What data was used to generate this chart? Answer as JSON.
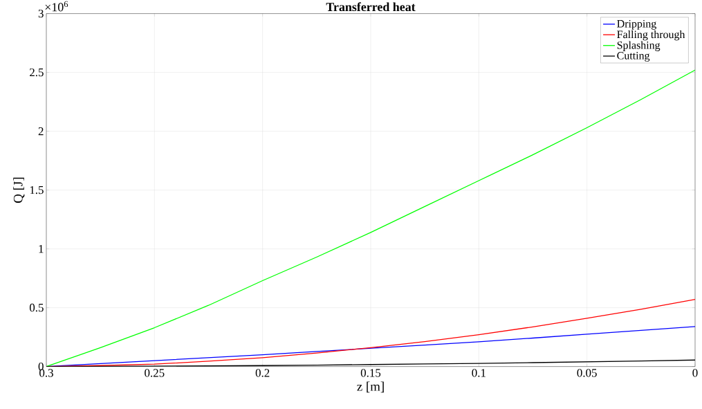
{
  "chart_data": {
    "type": "line",
    "title": "Transferred heat",
    "xlabel": "z [m]",
    "ylabel": "Q [J]",
    "x": [
      0.3,
      0.275,
      0.25,
      0.225,
      0.2,
      0.175,
      0.15,
      0.125,
      0.1,
      0.075,
      0.05,
      0.025,
      0
    ],
    "series": [
      {
        "name": "Dripping",
        "color": "#0000ff",
        "values": [
          0,
          0.025,
          0.05,
          0.075,
          0.1,
          0.128,
          0.155,
          0.182,
          0.21,
          0.242,
          0.275,
          0.307,
          0.34
        ]
      },
      {
        "name": "Falling through",
        "color": "#ff0000",
        "values": [
          0,
          0.008,
          0.02,
          0.045,
          0.075,
          0.115,
          0.16,
          0.212,
          0.27,
          0.337,
          0.41,
          0.487,
          0.57
        ]
      },
      {
        "name": "Splashing",
        "color": "#00ff00",
        "values": [
          0,
          0.16,
          0.33,
          0.52,
          0.73,
          0.93,
          1.14,
          1.36,
          1.58,
          1.8,
          2.03,
          2.27,
          2.52
        ]
      },
      {
        "name": "Cutting",
        "color": "#000000",
        "values": [
          0,
          0.001,
          0.003,
          0.005,
          0.008,
          0.012,
          0.017,
          0.022,
          0.027,
          0.033,
          0.04,
          0.047,
          0.055
        ]
      }
    ],
    "xlim": [
      0.3,
      0
    ],
    "xticks": [
      0.3,
      0.25,
      0.2,
      0.15,
      0.1,
      0.05,
      0
    ],
    "ylim": [
      0,
      3
    ],
    "yticks": [
      0,
      0.5,
      1,
      1.5,
      2,
      2.5,
      3
    ],
    "annotations": [
      "×10$^{6}$"
    ],
    "grid": true,
    "legend": "top right",
    "marker": "none",
    "line_style": "solid"
  }
}
